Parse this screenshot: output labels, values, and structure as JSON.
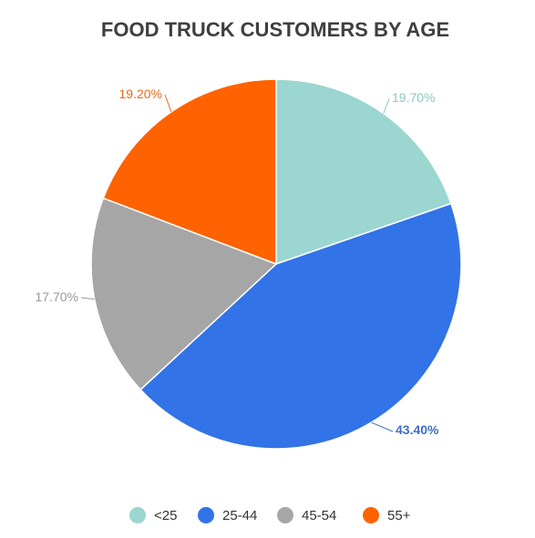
{
  "chart_data": {
    "type": "pie",
    "title": "FOOD TRUCK CUSTOMERS BY AGE",
    "categories": [
      "<25",
      "25-44",
      "45-54",
      "55+"
    ],
    "values": [
      19.7,
      43.4,
      17.7,
      19.2
    ],
    "labels": [
      "19.70%",
      "43.40%",
      "17.70%",
      "19.20%"
    ],
    "colors": [
      "#9bd6d1",
      "#3273e7",
      "#a6a6a6",
      "#ff6200"
    ],
    "label_colors": [
      "#8ec6c1",
      "#3e6fc2",
      "#9a9a9a",
      "#e86a18"
    ],
    "start_angle": "12 o'clock",
    "direction": "clockwise",
    "legend_position": "bottom"
  }
}
